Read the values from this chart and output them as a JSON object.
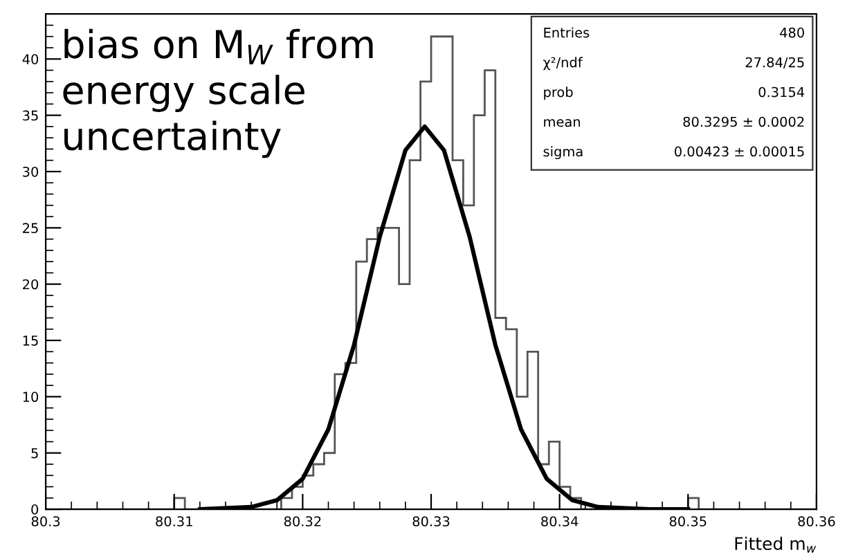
{
  "chart_data": {
    "type": "histogram",
    "xlabel": "Fitted m$_{w}$",
    "xlim": [
      80.3,
      80.36
    ],
    "xticks": [
      {
        "value": 80.3,
        "label": "80.3"
      },
      80.31,
      80.32,
      80.33,
      80.34,
      80.35,
      80.36
    ],
    "ylim": [
      0,
      44
    ],
    "yticks": [
      0,
      5,
      10,
      15,
      20,
      25,
      30,
      35,
      40
    ],
    "series": [
      {
        "color": "#555555",
        "bins": [
          80.3,
          80.30083,
          80.30167,
          80.3025,
          80.30333,
          80.30417,
          80.305,
          80.30583,
          80.30667,
          80.3075,
          80.30833,
          80.30917,
          80.31,
          80.31083,
          80.31167,
          80.3125,
          80.31333,
          80.31417,
          80.315,
          80.31583,
          80.31667,
          80.3175,
          80.31833,
          80.31917,
          80.32,
          80.32083,
          80.32167,
          80.3225,
          80.32333,
          80.32417,
          80.325,
          80.32583,
          80.32667,
          80.3275,
          80.32833,
          80.32917,
          80.33,
          80.33083,
          80.33167,
          80.3325,
          80.33333,
          80.33417,
          80.335,
          80.33583,
          80.33667,
          80.3375,
          80.33833,
          80.33917,
          80.34,
          80.34083,
          80.34167,
          80.3425,
          80.34333,
          80.34417,
          80.345,
          80.34583,
          80.34667,
          80.3475,
          80.34833,
          80.34917,
          80.35,
          80.35083,
          80.35167,
          80.3525,
          80.35333,
          80.35417,
          80.355,
          80.35583,
          80.35667,
          80.3575,
          80.35833,
          80.35917,
          80.36
        ],
        "values": [
          0,
          0,
          0,
          0,
          0,
          0,
          0,
          0,
          0,
          0,
          0,
          0,
          1,
          0,
          0,
          0,
          0,
          0,
          0,
          0,
          0,
          0,
          1,
          2,
          3,
          4,
          5,
          12,
          13,
          22,
          24,
          25,
          25,
          20,
          31,
          38,
          42,
          42,
          31,
          27,
          35,
          39,
          17,
          16,
          10,
          14,
          4,
          6,
          2,
          1,
          0,
          0,
          0,
          0,
          0,
          0,
          0,
          0,
          0,
          0,
          1,
          0,
          0,
          0,
          0,
          0,
          0,
          0,
          0,
          0,
          0,
          0
        ]
      },
      {
        "type": "line",
        "color": "#000000",
        "x": [
          80.312,
          80.316,
          80.318,
          80.32,
          80.322,
          80.324,
          80.326,
          80.328,
          80.3295,
          80.331,
          80.333,
          80.335,
          80.337,
          80.339,
          80.341,
          80.343,
          80.347,
          80.35
        ],
        "values": [
          0,
          0.2,
          0.8,
          2.7,
          7.1,
          14.6,
          24.2,
          31.9,
          34,
          31.9,
          24.2,
          14.6,
          7.1,
          2.7,
          0.8,
          0.2,
          0,
          0
        ]
      }
    ],
    "annotations": [
      "bias on M$_{W}$ from\nenergy scale\nuncertainty",
      "Entries",
      "480",
      "χ²/ndf",
      "27.84/25",
      "prob",
      "0.3154",
      "mean",
      "80.3295 ± 0.0002",
      "sigma",
      "0.00423 ± 0.00015"
    ],
    "grid": false,
    "legend": false
  }
}
